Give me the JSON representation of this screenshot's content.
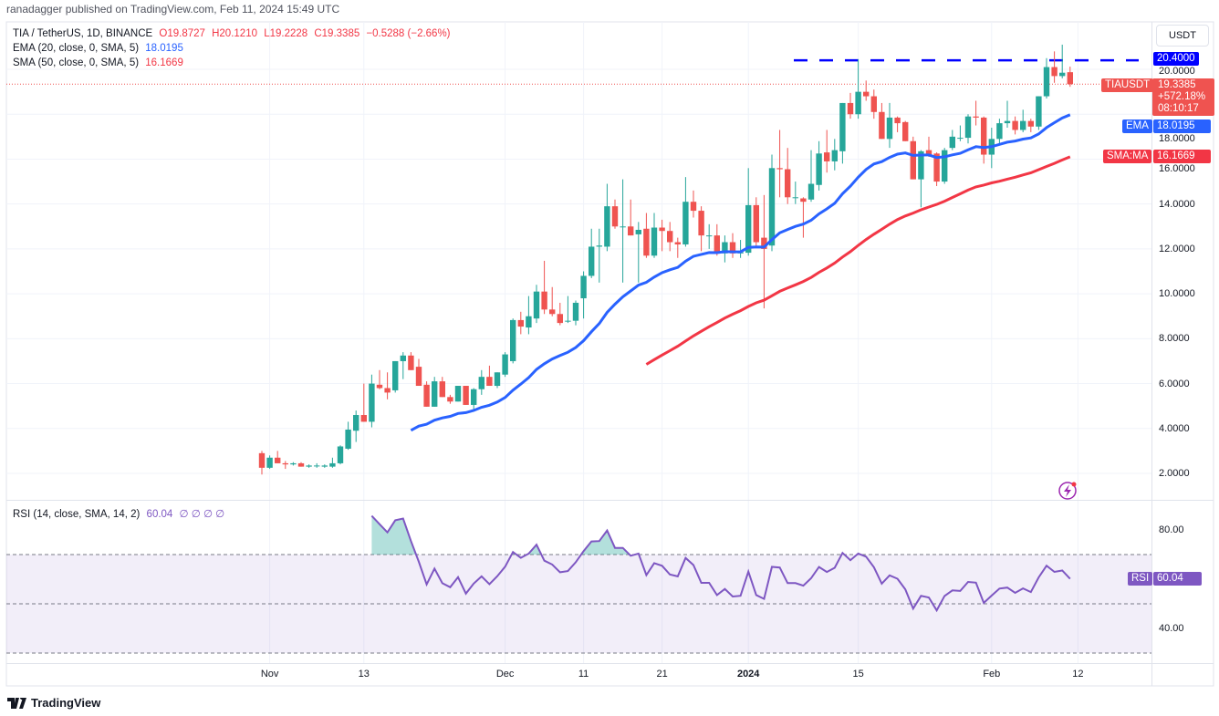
{
  "publisher": "ranadagger published on TradingView.com, Feb 11, 2024 15:49 UTC",
  "legend": {
    "symbol": "TIA / TetherUS, 1D, BINANCE",
    "open": "O19.8727",
    "high": "H20.1210",
    "low": "L19.2228",
    "close": "C19.3385",
    "change": "−0.5288 (−2.66%)",
    "ema_label": "EMA (20, close, 0, SMA, 5)",
    "ema_value": "18.0195",
    "sma_label": "SMA (50, close, 0, SMA, 5)",
    "sma_value": "16.1669",
    "rsi_label": "RSI (14, close, SMA, 14, 2)",
    "rsi_value": "60.04",
    "rsi_extra": "∅ ∅ ∅ ∅"
  },
  "currency_button": "USDT",
  "price_axis": [
    "20.0000",
    "18.0000",
    "16.0000",
    "14.0000",
    "12.0000",
    "10.0000",
    "8.0000",
    "6.0000",
    "4.0000",
    "2.0000"
  ],
  "rsi_axis": [
    "80.00",
    "40.00"
  ],
  "price_labels": {
    "level": "20.4000",
    "symbol_tag": "TIAUSDT",
    "last_price": "19.3385",
    "change_pct": "+572.18%",
    "countdown": "08:10:17",
    "ema_tag": "EMA",
    "ema_price": "18.0195",
    "sma_tag": "SMA:MA",
    "sma_price": "16.1669",
    "rsi_tag": "RSI",
    "rsi_value": "60.04"
  },
  "time_axis": [
    {
      "label": "Nov",
      "date": "2023-11-01"
    },
    {
      "label": "13",
      "date": "2023-11-13"
    },
    {
      "label": "Dec",
      "date": "2023-12-01"
    },
    {
      "label": "11",
      "date": "2023-12-11"
    },
    {
      "label": "21",
      "date": "2023-12-21"
    },
    {
      "label": "2024",
      "date": "2024-01-01",
      "bold": true
    },
    {
      "label": "15",
      "date": "2024-01-15"
    },
    {
      "label": "Feb",
      "date": "2024-02-01"
    },
    {
      "label": "12",
      "date": "2024-02-12"
    }
  ],
  "logo": "TradingView",
  "colors": {
    "up": "#26a69a",
    "down": "#ef5350",
    "ema": "#2962ff",
    "sma": "#f23645",
    "rsi": "#7e57c2",
    "level": "#0000ff"
  },
  "chart_data": {
    "type": "candlestick",
    "symbol": "TIAUSDT",
    "interval": "1D",
    "resistance_level": 20.4,
    "ylim": [
      1.0,
      22.0
    ],
    "rsi_bands": [
      30,
      50,
      70
    ],
    "indicators": {
      "ema_period": 20,
      "sma_period": 50,
      "rsi_period": 14
    },
    "candles_ohlc": [
      [
        "2023-10-31",
        2.9,
        3.0,
        1.95,
        2.25
      ],
      [
        "2023-11-01",
        2.25,
        2.8,
        2.2,
        2.7
      ],
      [
        "2023-11-02",
        2.7,
        3.0,
        2.45,
        2.45
      ],
      [
        "2023-11-03",
        2.45,
        2.55,
        2.2,
        2.4
      ],
      [
        "2023-11-04",
        2.4,
        2.5,
        2.35,
        2.45
      ],
      [
        "2023-11-05",
        2.45,
        2.5,
        2.3,
        2.3
      ],
      [
        "2023-11-06",
        2.3,
        2.4,
        2.25,
        2.35
      ],
      [
        "2023-11-07",
        2.35,
        2.45,
        2.25,
        2.35
      ],
      [
        "2023-11-08",
        2.3,
        2.4,
        2.25,
        2.35
      ],
      [
        "2023-11-09",
        2.3,
        2.7,
        2.25,
        2.45
      ],
      [
        "2023-11-10",
        2.45,
        3.25,
        2.4,
        3.2
      ],
      [
        "2023-11-11",
        3.1,
        4.3,
        3.05,
        3.95
      ],
      [
        "2023-11-12",
        3.9,
        4.8,
        3.4,
        4.6
      ],
      [
        "2023-11-13",
        4.6,
        6.0,
        4.3,
        4.3
      ],
      [
        "2023-11-14",
        4.3,
        6.4,
        4.05,
        6.0
      ],
      [
        "2023-11-15",
        5.95,
        6.6,
        5.75,
        5.8
      ],
      [
        "2023-11-16",
        5.8,
        6.5,
        5.3,
        5.6
      ],
      [
        "2023-11-17",
        5.7,
        7.0,
        5.6,
        7.0
      ],
      [
        "2023-11-18",
        7.0,
        7.4,
        6.2,
        7.25
      ],
      [
        "2023-11-19",
        7.25,
        7.4,
        6.6,
        6.6
      ],
      [
        "2023-11-20",
        6.75,
        7.1,
        5.9,
        5.9
      ],
      [
        "2023-11-21",
        5.95,
        6.1,
        4.97,
        4.97
      ],
      [
        "2023-11-22",
        4.97,
        6.3,
        4.97,
        6.1
      ],
      [
        "2023-11-23",
        6.1,
        6.3,
        5.4,
        5.4
      ],
      [
        "2023-11-24",
        5.4,
        5.5,
        5.1,
        5.2
      ],
      [
        "2023-11-25",
        5.2,
        5.9,
        5.2,
        5.9
      ],
      [
        "2023-11-26",
        5.9,
        5.9,
        5.05,
        5.05
      ],
      [
        "2023-11-27",
        5.05,
        5.8,
        4.75,
        5.75
      ],
      [
        "2023-11-28",
        5.75,
        6.6,
        5.5,
        6.3
      ],
      [
        "2023-11-29",
        6.3,
        6.8,
        5.9,
        5.9
      ],
      [
        "2023-11-30",
        5.9,
        6.5,
        5.8,
        6.5
      ],
      [
        "2023-12-01",
        6.4,
        7.4,
        6.3,
        7.3
      ],
      [
        "2023-12-02",
        7.0,
        8.9,
        6.9,
        8.83
      ],
      [
        "2023-12-03",
        8.83,
        9.2,
        8.2,
        8.54
      ],
      [
        "2023-12-04",
        8.5,
        9.9,
        8.2,
        9.0
      ],
      [
        "2023-12-05",
        8.9,
        10.4,
        8.7,
        10.1
      ],
      [
        "2023-12-06",
        10.1,
        11.47,
        9.1,
        9.3
      ],
      [
        "2023-12-07",
        9.3,
        10.3,
        9.0,
        9.1
      ],
      [
        "2023-12-08",
        9.1,
        9.6,
        8.6,
        8.7
      ],
      [
        "2023-12-09",
        8.8,
        9.9,
        8.7,
        8.8
      ],
      [
        "2023-12-10",
        8.8,
        9.7,
        8.6,
        9.6
      ],
      [
        "2023-12-11",
        9.8,
        11.0,
        8.9,
        10.8
      ],
      [
        "2023-12-12",
        10.8,
        12.9,
        10.7,
        12.1
      ],
      [
        "2023-12-13",
        12.1,
        12.9,
        10.5,
        12.15
      ],
      [
        "2023-12-14",
        12.1,
        14.9,
        11.9,
        13.9
      ],
      [
        "2023-12-15",
        13.9,
        14.2,
        12.9,
        13.0
      ],
      [
        "2023-12-16",
        13.0,
        15.1,
        10.5,
        13.0
      ],
      [
        "2023-12-17",
        13.0,
        14.2,
        12.6,
        12.6
      ],
      [
        "2023-12-18",
        12.65,
        13.2,
        10.5,
        12.85
      ],
      [
        "2023-12-19",
        12.9,
        13.6,
        11.6,
        11.7
      ],
      [
        "2023-12-20",
        11.7,
        13.6,
        11.6,
        12.95
      ],
      [
        "2023-12-21",
        12.95,
        13.3,
        11.9,
        12.8
      ],
      [
        "2023-12-22",
        12.8,
        13.2,
        11.9,
        12.3
      ],
      [
        "2023-12-23",
        12.3,
        12.5,
        11.6,
        12.2
      ],
      [
        "2023-12-24",
        12.2,
        15.2,
        12.1,
        14.1
      ],
      [
        "2023-12-25",
        14.1,
        14.6,
        13.4,
        13.7
      ],
      [
        "2023-12-26",
        13.7,
        13.9,
        11.9,
        12.6
      ],
      [
        "2023-12-27",
        12.6,
        13.1,
        12.0,
        12.6
      ],
      [
        "2023-12-28",
        12.6,
        13.1,
        11.7,
        11.8
      ],
      [
        "2023-12-29",
        11.8,
        12.6,
        11.4,
        12.3
      ],
      [
        "2023-12-30",
        12.3,
        12.7,
        11.6,
        11.8
      ],
      [
        "2023-12-31",
        11.8,
        12.4,
        11.6,
        11.85
      ],
      [
        "2024-01-01",
        11.83,
        15.6,
        11.7,
        13.95
      ],
      [
        "2024-01-02",
        13.95,
        14.3,
        12.1,
        12.3
      ],
      [
        "2024-01-03",
        12.5,
        14.4,
        9.35,
        12.0
      ],
      [
        "2024-01-04",
        12.15,
        16.2,
        11.9,
        15.6
      ],
      [
        "2024-01-05",
        15.6,
        17.3,
        14.3,
        15.55
      ],
      [
        "2024-01-06",
        15.55,
        16.5,
        14.0,
        14.3
      ],
      [
        "2024-01-07",
        14.3,
        15.0,
        14.0,
        14.3
      ],
      [
        "2024-01-08",
        14.25,
        14.3,
        12.5,
        14.1
      ],
      [
        "2024-01-09",
        14.2,
        16.4,
        14.1,
        14.9
      ],
      [
        "2024-01-10",
        14.85,
        16.8,
        14.6,
        16.25
      ],
      [
        "2024-01-11",
        16.3,
        17.3,
        15.4,
        15.9
      ],
      [
        "2024-01-12",
        15.9,
        16.9,
        15.5,
        16.4
      ],
      [
        "2024-01-13",
        16.35,
        18.5,
        15.8,
        18.5
      ],
      [
        "2024-01-14",
        18.5,
        18.95,
        17.8,
        18.0
      ],
      [
        "2024-01-15",
        18.0,
        20.45,
        17.8,
        19.0
      ],
      [
        "2024-01-16",
        19.0,
        19.5,
        18.6,
        18.8
      ],
      [
        "2024-01-17",
        18.8,
        19.1,
        17.8,
        18.1
      ],
      [
        "2024-01-18",
        18.1,
        18.5,
        16.9,
        16.9
      ],
      [
        "2024-01-19",
        16.9,
        18.5,
        16.5,
        17.85
      ],
      [
        "2024-01-20",
        17.85,
        17.9,
        17.2,
        17.6
      ],
      [
        "2024-01-21",
        17.65,
        17.7,
        16.8,
        16.8
      ],
      [
        "2024-01-22",
        16.8,
        17.0,
        15.1,
        15.1
      ],
      [
        "2024-01-23",
        15.1,
        16.4,
        13.85,
        16.35
      ],
      [
        "2024-01-24",
        16.4,
        17.0,
        16.1,
        16.2
      ],
      [
        "2024-01-25",
        16.25,
        16.3,
        14.8,
        15.0
      ],
      [
        "2024-01-26",
        15.0,
        16.5,
        14.9,
        16.4
      ],
      [
        "2024-01-27",
        16.5,
        17.3,
        16.4,
        17.0
      ],
      [
        "2024-01-28",
        16.95,
        17.5,
        16.8,
        16.95
      ],
      [
        "2024-01-29",
        16.95,
        18.0,
        16.7,
        17.9
      ],
      [
        "2024-01-30",
        17.9,
        18.6,
        17.5,
        17.85
      ],
      [
        "2024-01-31",
        17.85,
        17.9,
        15.8,
        16.2
      ],
      [
        "2024-02-01",
        16.2,
        17.4,
        15.6,
        16.9
      ],
      [
        "2024-02-02",
        16.9,
        17.8,
        16.7,
        17.6
      ],
      [
        "2024-02-03",
        17.6,
        18.6,
        17.4,
        17.7
      ],
      [
        "2024-02-04",
        17.7,
        17.9,
        17.1,
        17.3
      ],
      [
        "2024-02-05",
        17.3,
        18.2,
        17.2,
        17.7
      ],
      [
        "2024-02-06",
        17.7,
        17.8,
        17.2,
        17.45
      ],
      [
        "2024-02-07",
        17.45,
        18.8,
        17.3,
        18.8
      ],
      [
        "2024-02-08",
        18.8,
        20.5,
        18.7,
        20.1
      ],
      [
        "2024-02-09",
        20.1,
        20.8,
        19.4,
        19.7
      ],
      [
        "2024-02-10",
        19.7,
        21.1,
        19.6,
        19.85
      ],
      [
        "2024-02-11",
        19.8727,
        20.121,
        19.2228,
        19.3385
      ]
    ]
  }
}
